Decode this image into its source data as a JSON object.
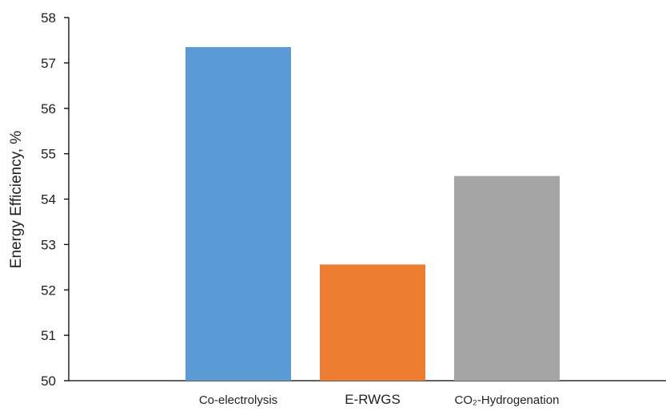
{
  "chart_data": {
    "type": "bar",
    "categories": [
      "Co-electrolysis",
      "E-RWGS",
      "CO₂-Hydrogenation"
    ],
    "values": [
      57.35,
      52.56,
      54.51
    ],
    "colors": [
      "#5b9bd5",
      "#ed7d31",
      "#a5a5a5"
    ],
    "title": "",
    "xlabel": "",
    "ylabel": "Energy Efficiency, %",
    "ylim": [
      50,
      58
    ],
    "yticks": [
      50,
      51,
      52,
      53,
      54,
      55,
      56,
      57,
      58
    ],
    "grid": false,
    "legend": "none"
  }
}
